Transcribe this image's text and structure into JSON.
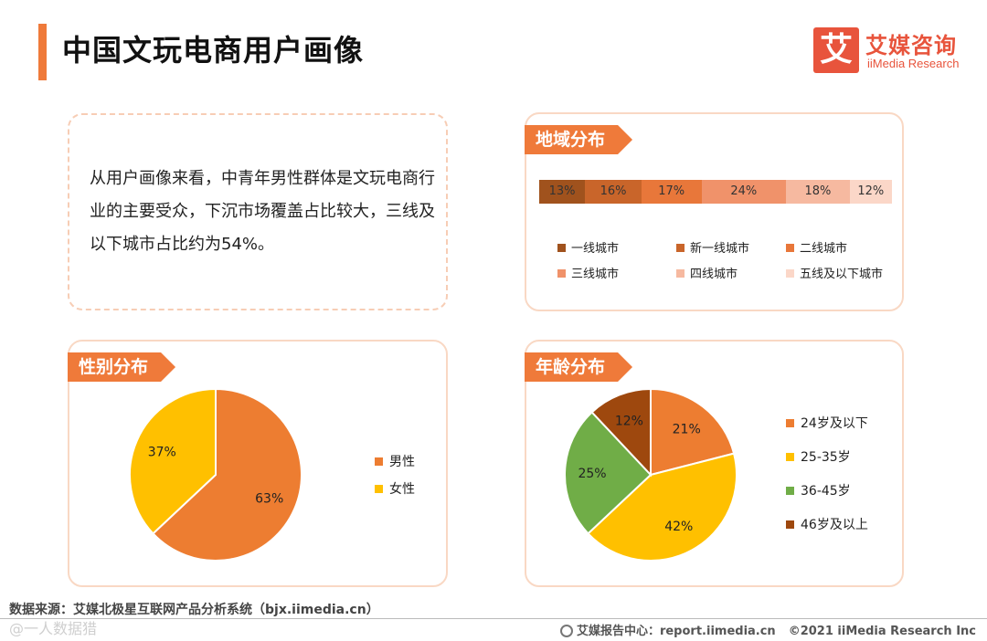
{
  "header": {
    "title": "中国文玩电商用户画像",
    "logo_mark": "艾",
    "logo_cn": "艾媒咨询",
    "logo_en": "iiMedia Research"
  },
  "summary": {
    "text": "从用户画像来看，中青年男性群体是文玩电商行业的主要受众，下沉市场覆盖占比较大，三线及以下城市占比约为54%。"
  },
  "region": {
    "tag": "地域分布"
  },
  "gender": {
    "tag": "性别分布"
  },
  "age": {
    "tag": "年龄分布"
  },
  "chart_data": [
    {
      "type": "bar",
      "orientation": "horizontal-stacked",
      "title": "地域分布",
      "series": [
        {
          "name": "一线城市",
          "value": 13,
          "label": "13%",
          "color": "#a0521d"
        },
        {
          "name": "新一线城市",
          "value": 16,
          "label": "16%",
          "color": "#c9652a"
        },
        {
          "name": "二线城市",
          "value": 17,
          "label": "17%",
          "color": "#e8773a"
        },
        {
          "name": "三线城市",
          "value": 24,
          "label": "24%",
          "color": "#f0926a"
        },
        {
          "name": "四线城市",
          "value": 18,
          "label": "18%",
          "color": "#f6b9a0"
        },
        {
          "name": "五线及以下城市",
          "value": 12,
          "label": "12%",
          "color": "#fbd7c8"
        }
      ],
      "legend": "bottom"
    },
    {
      "type": "pie",
      "title": "性别分布",
      "slices": [
        {
          "name": "男性",
          "value": 63,
          "label": "63%",
          "color": "#ed7d31"
        },
        {
          "name": "女性",
          "value": 37,
          "label": "37%",
          "color": "#ffc000"
        }
      ],
      "legend": "right"
    },
    {
      "type": "pie",
      "title": "年龄分布",
      "slices": [
        {
          "name": "24岁及以下",
          "value": 21,
          "label": "21%",
          "color": "#ed7d31"
        },
        {
          "name": "25-35岁",
          "value": 42,
          "label": "42%",
          "color": "#ffc000"
        },
        {
          "name": "36-45岁",
          "value": 25,
          "label": "25%",
          "color": "#70ad47"
        },
        {
          "name": "46岁及以上",
          "value": 12,
          "label": "12%",
          "color": "#9e480e"
        }
      ],
      "legend": "right"
    }
  ],
  "footer": {
    "source": "数据来源：艾媒北极星互联网产品分析系统（bjx.iimedia.cn）",
    "watermark": "@一人数据猎",
    "report_center": "艾媒报告中心：report.iimedia.cn",
    "copyright": "©2021  iiMedia Research  Inc"
  }
}
